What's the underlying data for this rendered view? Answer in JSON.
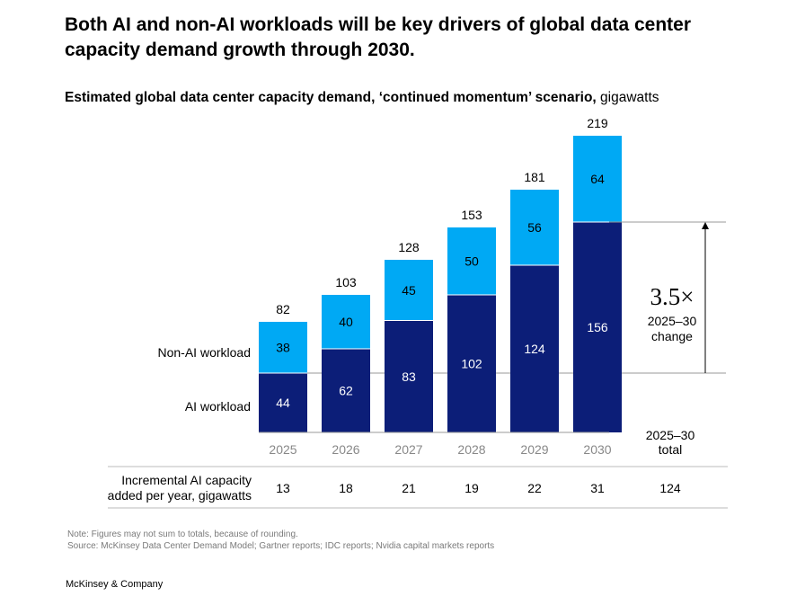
{
  "title": "Both AI and non-AI workloads will be key drivers of global data center capacity demand growth through 2030.",
  "subtitle_bold": "Estimated global data center capacity demand, ‘continued momentum’ scenario,",
  "subtitle_unit": "gigawatts",
  "colors": {
    "ai": "#0c1e78",
    "non_ai": "#00a9f4",
    "axis": "#999999",
    "muted": "#888888"
  },
  "chart_data": {
    "type": "bar",
    "stacked": true,
    "categories": [
      "2025",
      "2026",
      "2027",
      "2028",
      "2029",
      "2030"
    ],
    "series": [
      {
        "name": "AI workload",
        "values": [
          44,
          62,
          83,
          102,
          124,
          156
        ]
      },
      {
        "name": "Non-AI workload",
        "values": [
          38,
          40,
          45,
          50,
          56,
          64
        ]
      }
    ],
    "totals": [
      82,
      103,
      128,
      153,
      181,
      219
    ],
    "annotation": {
      "value": "3.5×",
      "label_line1": "2025–30",
      "label_line2": "change"
    },
    "total_header": {
      "line1": "2025–30",
      "line2": "total"
    },
    "incremental": {
      "label_line1": "Incremental AI capacity",
      "label_line2": "added per year, gigawatts",
      "values": [
        "13",
        "18",
        "21",
        "19",
        "22",
        "31"
      ],
      "total": "124"
    }
  },
  "notes": [
    "Note: Figures may not sum to totals, because of rounding.",
    "Source: McKinsey Data Center Demand Model; Gartner reports; IDC reports; Nvidia capital markets reports"
  ],
  "brand": "McKinsey & Company"
}
